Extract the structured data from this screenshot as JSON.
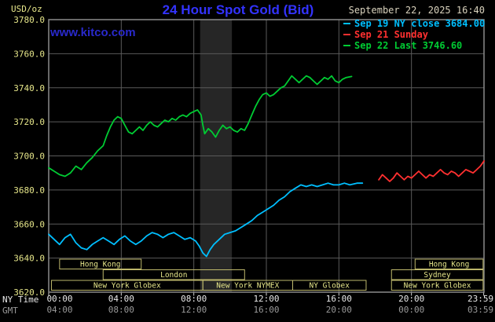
{
  "header": {
    "units": "USD/oz",
    "title": "24 Hour Spot Gold (Bid)",
    "datetime": "September 22, 2025 16:40",
    "watermark": "www.kitco.com"
  },
  "legend": [
    {
      "label": "Sep 19 NY close 3684.00",
      "color": "#00bfff"
    },
    {
      "label": "Sep 21 Sunday",
      "color": "#ff3030"
    },
    {
      "label": "Sep 22 Last 3746.60",
      "color": "#00cc33"
    }
  ],
  "colors": {
    "background": "#000000",
    "title": "#3333ff",
    "watermark": "#2929cc",
    "axis_text": "#e6e68a",
    "datetime_text": "#d9d2bd",
    "ny_time_text": "#e8e8e8",
    "gmt_text": "#9a9a9a",
    "grid": "#5a5a5a",
    "plot_border": "#8a8a8a",
    "tick_mark": "#cfcfcf",
    "session_border": "#bdb76b",
    "shaded_band": "#262626"
  },
  "chart_data": {
    "type": "line",
    "title": "24 Hour Spot Gold (Bid)",
    "ylabel": "USD/oz",
    "ylim": [
      3620,
      3780
    ],
    "y_tick_step": 20,
    "y_tick_labels": [
      "3620.0",
      "3640.0",
      "3660.0",
      "3680.0",
      "3700.0",
      "3720.0",
      "3740.0",
      "3760.0",
      "3780.0"
    ],
    "xlim_hours": [
      0,
      24
    ],
    "x_axis": {
      "ny_label": "NY Time",
      "gmt_label": "GMT",
      "tick_hours": [
        0,
        4,
        8,
        12,
        16,
        20,
        23.983
      ],
      "ny_tick_labels": [
        "00:00",
        "04:00",
        "08:00",
        "12:00",
        "16:00",
        "20:00",
        "23:59"
      ],
      "gmt_tick_labels": [
        "04:00",
        "08:00",
        "12:00",
        "16:00",
        "20:00",
        "00:00",
        "03:59"
      ]
    },
    "grid": true,
    "legend_position": "top-right",
    "shaded_band_hours": [
      8.35,
      10.1
    ],
    "series": [
      {
        "name": "Sep 19 NY close",
        "close": 3684.0,
        "color": "#00bfff",
        "points": [
          [
            0,
            3654
          ],
          [
            0.3,
            3651
          ],
          [
            0.6,
            3648
          ],
          [
            0.9,
            3652
          ],
          [
            1.2,
            3654
          ],
          [
            1.5,
            3649
          ],
          [
            1.8,
            3646
          ],
          [
            2.1,
            3645
          ],
          [
            2.4,
            3648
          ],
          [
            2.7,
            3650
          ],
          [
            3,
            3652
          ],
          [
            3.3,
            3650
          ],
          [
            3.6,
            3648
          ],
          [
            3.9,
            3651
          ],
          [
            4.2,
            3653
          ],
          [
            4.5,
            3650
          ],
          [
            4.8,
            3648
          ],
          [
            5.1,
            3650
          ],
          [
            5.4,
            3653
          ],
          [
            5.7,
            3655
          ],
          [
            6,
            3654
          ],
          [
            6.3,
            3652
          ],
          [
            6.6,
            3654
          ],
          [
            6.9,
            3655
          ],
          [
            7.2,
            3653
          ],
          [
            7.5,
            3651
          ],
          [
            7.8,
            3652
          ],
          [
            8.1,
            3650
          ],
          [
            8.3,
            3647
          ],
          [
            8.5,
            3643
          ],
          [
            8.7,
            3641
          ],
          [
            8.9,
            3645
          ],
          [
            9.1,
            3648
          ],
          [
            9.4,
            3651
          ],
          [
            9.7,
            3654
          ],
          [
            10,
            3655
          ],
          [
            10.3,
            3656
          ],
          [
            10.6,
            3658
          ],
          [
            10.9,
            3660
          ],
          [
            11.2,
            3662
          ],
          [
            11.5,
            3665
          ],
          [
            11.8,
            3667
          ],
          [
            12.1,
            3669
          ],
          [
            12.4,
            3671
          ],
          [
            12.7,
            3674
          ],
          [
            13,
            3676
          ],
          [
            13.3,
            3679
          ],
          [
            13.6,
            3681
          ],
          [
            13.9,
            3683
          ],
          [
            14.2,
            3682
          ],
          [
            14.5,
            3683
          ],
          [
            14.8,
            3682
          ],
          [
            15.1,
            3683
          ],
          [
            15.4,
            3684
          ],
          [
            15.7,
            3683
          ],
          [
            16,
            3683
          ],
          [
            16.3,
            3684
          ],
          [
            16.6,
            3683
          ],
          [
            17,
            3684
          ],
          [
            17.3,
            3684
          ]
        ]
      },
      {
        "name": "Sep 21 Sunday",
        "color": "#ff3030",
        "points": [
          [
            18.2,
            3686
          ],
          [
            18.4,
            3689
          ],
          [
            18.6,
            3687
          ],
          [
            18.8,
            3685
          ],
          [
            19,
            3687
          ],
          [
            19.2,
            3690
          ],
          [
            19.4,
            3688
          ],
          [
            19.6,
            3686
          ],
          [
            19.8,
            3688
          ],
          [
            20,
            3687
          ],
          [
            20.2,
            3689
          ],
          [
            20.4,
            3691
          ],
          [
            20.6,
            3689
          ],
          [
            20.8,
            3687
          ],
          [
            21,
            3689
          ],
          [
            21.2,
            3688
          ],
          [
            21.4,
            3690
          ],
          [
            21.6,
            3692
          ],
          [
            21.8,
            3690
          ],
          [
            22,
            3689
          ],
          [
            22.2,
            3691
          ],
          [
            22.4,
            3690
          ],
          [
            22.6,
            3688
          ],
          [
            22.8,
            3690
          ],
          [
            23,
            3692
          ],
          [
            23.2,
            3691
          ],
          [
            23.4,
            3690
          ],
          [
            23.6,
            3692
          ],
          [
            23.8,
            3694
          ],
          [
            24,
            3697
          ]
        ]
      },
      {
        "name": "Sep 22",
        "last": 3746.6,
        "color": "#00cc33",
        "points": [
          [
            0,
            3693
          ],
          [
            0.3,
            3691
          ],
          [
            0.6,
            3689
          ],
          [
            0.9,
            3688
          ],
          [
            1.2,
            3690
          ],
          [
            1.5,
            3694
          ],
          [
            1.8,
            3692
          ],
          [
            2.1,
            3696
          ],
          [
            2.4,
            3699
          ],
          [
            2.7,
            3703
          ],
          [
            3,
            3706
          ],
          [
            3.2,
            3712
          ],
          [
            3.4,
            3717
          ],
          [
            3.6,
            3721
          ],
          [
            3.8,
            3723
          ],
          [
            4,
            3722
          ],
          [
            4.2,
            3718
          ],
          [
            4.4,
            3714
          ],
          [
            4.6,
            3713
          ],
          [
            4.8,
            3715
          ],
          [
            5,
            3717
          ],
          [
            5.2,
            3715
          ],
          [
            5.4,
            3718
          ],
          [
            5.6,
            3720
          ],
          [
            5.8,
            3718
          ],
          [
            6,
            3717
          ],
          [
            6.2,
            3719
          ],
          [
            6.4,
            3721
          ],
          [
            6.6,
            3720
          ],
          [
            6.8,
            3722
          ],
          [
            7,
            3721
          ],
          [
            7.2,
            3723
          ],
          [
            7.4,
            3724
          ],
          [
            7.6,
            3723
          ],
          [
            7.8,
            3725
          ],
          [
            8,
            3726
          ],
          [
            8.2,
            3727
          ],
          [
            8.4,
            3724
          ],
          [
            8.5,
            3718
          ],
          [
            8.6,
            3713
          ],
          [
            8.8,
            3716
          ],
          [
            9,
            3714
          ],
          [
            9.2,
            3711
          ],
          [
            9.4,
            3715
          ],
          [
            9.6,
            3718
          ],
          [
            9.8,
            3716
          ],
          [
            10,
            3717
          ],
          [
            10.2,
            3715
          ],
          [
            10.4,
            3714
          ],
          [
            10.6,
            3716
          ],
          [
            10.8,
            3715
          ],
          [
            11,
            3719
          ],
          [
            11.2,
            3724
          ],
          [
            11.4,
            3729
          ],
          [
            11.6,
            3733
          ],
          [
            11.8,
            3736
          ],
          [
            12,
            3737
          ],
          [
            12.2,
            3735
          ],
          [
            12.4,
            3736
          ],
          [
            12.6,
            3738
          ],
          [
            12.8,
            3740
          ],
          [
            13,
            3741
          ],
          [
            13.2,
            3744
          ],
          [
            13.4,
            3747
          ],
          [
            13.6,
            3745
          ],
          [
            13.8,
            3743
          ],
          [
            14,
            3745
          ],
          [
            14.2,
            3747
          ],
          [
            14.4,
            3746
          ],
          [
            14.6,
            3744
          ],
          [
            14.8,
            3742
          ],
          [
            15,
            3744
          ],
          [
            15.2,
            3746
          ],
          [
            15.4,
            3745
          ],
          [
            15.6,
            3747
          ],
          [
            15.8,
            3744
          ],
          [
            16,
            3743
          ],
          [
            16.2,
            3745
          ],
          [
            16.4,
            3746
          ],
          [
            16.7,
            3746.6
          ]
        ]
      }
    ],
    "sessions": [
      {
        "label": "Hong Kong",
        "row": 0,
        "start": 0.6,
        "end": 5.1
      },
      {
        "label": "London",
        "row": 1,
        "start": 3.0,
        "end": 10.8
      },
      {
        "label": "New York Globex",
        "row": 2,
        "start": 0.15,
        "end": 8.5
      },
      {
        "label": "New York NYMEX",
        "row": 2,
        "start": 8.5,
        "end": 13.45
      },
      {
        "label": "NY Globex",
        "row": 2,
        "start": 13.45,
        "end": 17.5
      },
      {
        "label": "Sydney",
        "row": 1,
        "start": 18.9,
        "end": 23.95
      },
      {
        "label": "Hong Kong",
        "row": 0,
        "start": 20.2,
        "end": 23.95
      },
      {
        "label": "New York Globex",
        "row": 2,
        "start": 18.9,
        "end": 23.95
      }
    ]
  }
}
